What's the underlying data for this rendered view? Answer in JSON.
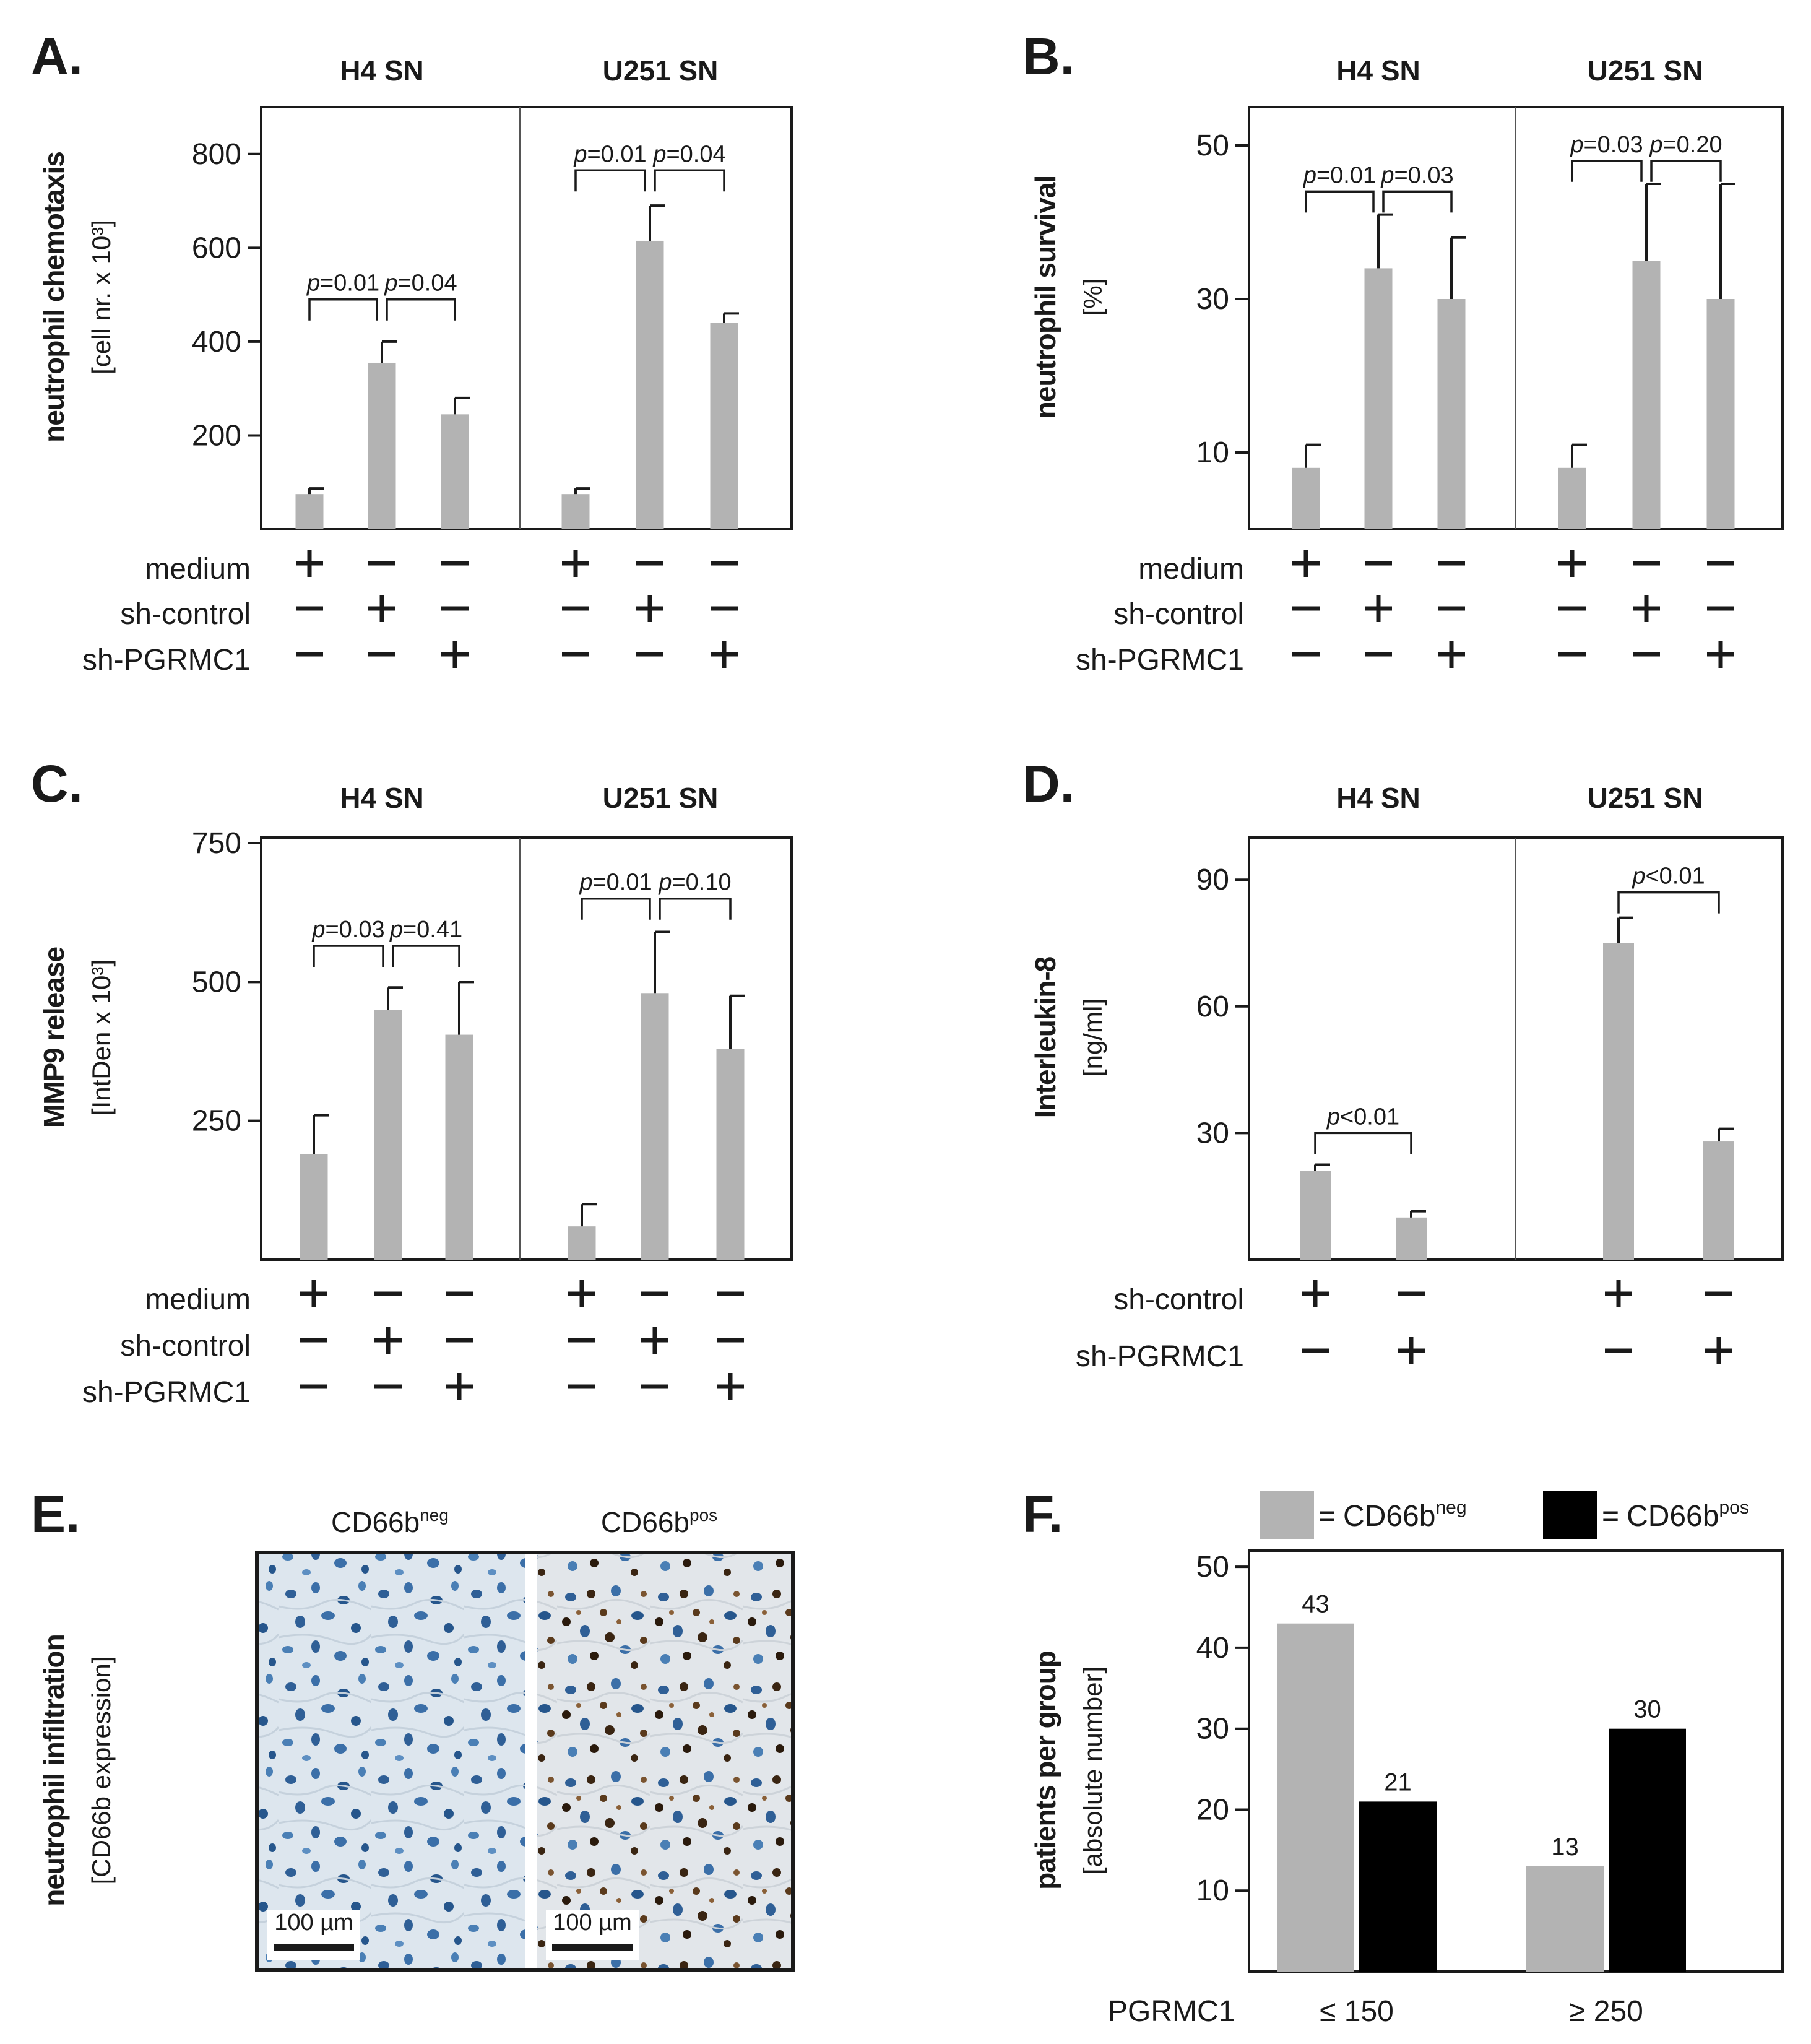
{
  "colors": {
    "bar_gray": "#b3b3b3",
    "bar_black": "#000000",
    "axis": "#1a1a1a"
  },
  "panels": {
    "A": {
      "label": "A.",
      "group1": "H4 SN",
      "group2": "U251 SN",
      "ylabel": "neutrophil chemotaxis",
      "yunit": "[cell nr. x 10³]",
      "rows": [
        {
          "label": "medium",
          "signs": [
            "+",
            "–",
            "–",
            "+",
            "–",
            "–"
          ]
        },
        {
          "label": "sh-control",
          "signs": [
            "–",
            "+",
            "–",
            "–",
            "+",
            "–"
          ]
        },
        {
          "label": "sh-PGRMC1",
          "signs": [
            "–",
            "–",
            "+",
            "–",
            "–",
            "+"
          ]
        }
      ]
    },
    "B": {
      "label": "B.",
      "group1": "H4 SN",
      "group2": "U251 SN",
      "ylabel": "neutrophil survival",
      "yunit": "[%]",
      "rows": [
        {
          "label": "medium",
          "signs": [
            "+",
            "–",
            "–",
            "+",
            "–",
            "–"
          ]
        },
        {
          "label": "sh-control",
          "signs": [
            "–",
            "+",
            "–",
            "–",
            "+",
            "–"
          ]
        },
        {
          "label": "sh-PGRMC1",
          "signs": [
            "–",
            "–",
            "+",
            "–",
            "–",
            "+"
          ]
        }
      ]
    },
    "C": {
      "label": "C.",
      "group1": "H4 SN",
      "group2": "U251 SN",
      "ylabel": "MMP9 release",
      "yunit": "[IntDen x 10³]",
      "rows": [
        {
          "label": "medium",
          "signs": [
            "+",
            "–",
            "–",
            "+",
            "–",
            "–"
          ]
        },
        {
          "label": "sh-control",
          "signs": [
            "–",
            "+",
            "–",
            "–",
            "+",
            "–"
          ]
        },
        {
          "label": "sh-PGRMC1",
          "signs": [
            "–",
            "–",
            "+",
            "–",
            "–",
            "+"
          ]
        }
      ]
    },
    "D": {
      "label": "D.",
      "group1": "H4 SN",
      "group2": "U251 SN",
      "ylabel": "Interleukin-8",
      "yunit": "[ng/ml]",
      "rows": [
        {
          "label": "sh-control",
          "signs": [
            "+",
            "–",
            "+",
            "–"
          ]
        },
        {
          "label": "sh-PGRMC1",
          "signs": [
            "–",
            "+",
            "–",
            "+"
          ]
        }
      ]
    },
    "E": {
      "label": "E.",
      "img1": "CD66b",
      "img1_sup": "neg",
      "img2": "CD66b",
      "img2_sup": "pos",
      "ylabel": "neutrophil infiltration",
      "yunit": "[CD66b expression]",
      "scalebar": "100 µm"
    },
    "F": {
      "label": "F.",
      "legend_eq": "=",
      "legend1": "CD66b",
      "legend1_sup": "neg",
      "legend2": "CD66b",
      "legend2_sup": "pos",
      "ylabel": "patients per group",
      "yunit": "[absolute number]",
      "xlabel": "PGRMC1"
    }
  },
  "chart_data": [
    {
      "panel": "A",
      "type": "bar",
      "ylim": [
        0,
        900
      ],
      "yticks": [
        200,
        400,
        600,
        800
      ],
      "groups": [
        "H4 SN",
        "U251 SN"
      ],
      "values": [
        75,
        355,
        245,
        75,
        615,
        440
      ],
      "errors": [
        12,
        45,
        35,
        12,
        75,
        20
      ],
      "pvalues": [
        {
          "from": 0,
          "to": 1,
          "text": "=0.01",
          "level": 490
        },
        {
          "from": 1,
          "to": 2,
          "text": "=0.04",
          "level": 490
        },
        {
          "from": 3,
          "to": 4,
          "text": "=0.01",
          "level": 765
        },
        {
          "from": 4,
          "to": 5,
          "text": "=0.04",
          "level": 765
        }
      ],
      "p_prefix": "p"
    },
    {
      "panel": "B",
      "type": "bar",
      "ylim": [
        0,
        55
      ],
      "yticks": [
        10,
        30,
        50
      ],
      "groups": [
        "H4 SN",
        "U251 SN"
      ],
      "values": [
        8,
        34,
        30,
        8,
        35,
        30
      ],
      "errors": [
        3,
        7,
        8,
        3,
        10,
        15
      ],
      "pvalues": [
        {
          "from": 0,
          "to": 1,
          "text": "=0.01",
          "level": 44
        },
        {
          "from": 1,
          "to": 2,
          "text": "=0.03",
          "level": 44
        },
        {
          "from": 3,
          "to": 4,
          "text": "=0.03",
          "level": 48
        },
        {
          "from": 4,
          "to": 5,
          "text": "=0.20",
          "level": 48
        }
      ],
      "p_prefix": "p"
    },
    {
      "panel": "C",
      "type": "bar",
      "ylim": [
        0,
        760
      ],
      "yticks": [
        250,
        500,
        750
      ],
      "groups": [
        "H4 SN",
        "U251 SN"
      ],
      "values": [
        190,
        450,
        405,
        60,
        480,
        380
      ],
      "errors": [
        70,
        40,
        95,
        40,
        110,
        95
      ],
      "pvalues": [
        {
          "from": 0,
          "to": 1,
          "text": "=0.03",
          "level": 565
        },
        {
          "from": 1,
          "to": 2,
          "text": "=0.41",
          "level": 565
        },
        {
          "from": 3,
          "to": 4,
          "text": "=0.01",
          "level": 650
        },
        {
          "from": 4,
          "to": 5,
          "text": "=0.10",
          "level": 650
        }
      ],
      "p_prefix": "p"
    },
    {
      "panel": "D",
      "type": "bar",
      "ylim": [
        0,
        100
      ],
      "yticks": [
        30,
        60,
        90
      ],
      "groups": [
        "H4 SN",
        "U251 SN"
      ],
      "values": [
        21,
        10,
        75,
        28
      ],
      "errors": [
        1.5,
        1.5,
        6,
        3
      ],
      "pvalues": [
        {
          "from": 0,
          "to": 1,
          "text": "<0.01",
          "level": 30
        },
        {
          "from": 2,
          "to": 3,
          "text": "<0.01",
          "level": 87
        }
      ],
      "p_prefix": "p"
    },
    {
      "panel": "F",
      "type": "bar",
      "ylim": [
        0,
        52
      ],
      "yticks": [
        10,
        20,
        30,
        40,
        50
      ],
      "categories": [
        "≤ 150",
        "≥ 250"
      ],
      "series": [
        {
          "name": "CD66b neg",
          "values": [
            43,
            13
          ]
        },
        {
          "name": "CD66b pos",
          "values": [
            21,
            30
          ]
        }
      ],
      "data_labels": [
        "43",
        "21",
        "13",
        "30"
      ]
    }
  ]
}
